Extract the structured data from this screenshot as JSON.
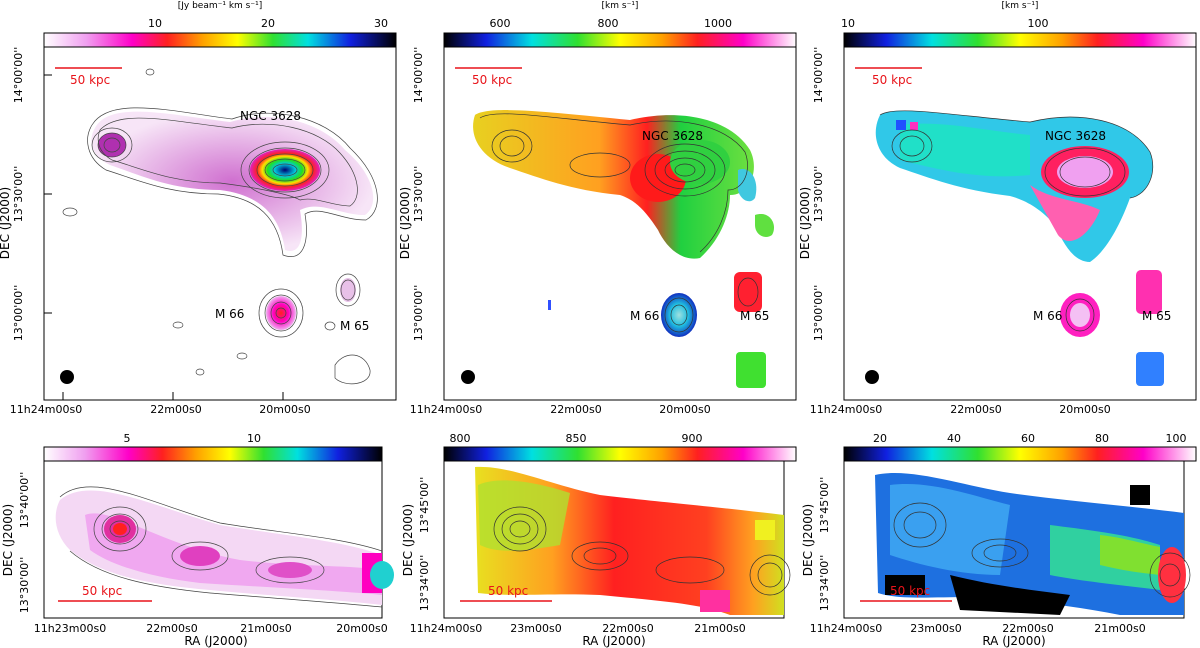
{
  "colorbars": {
    "cb1": {
      "unit": "[Jy beam⁻¹ km s⁻¹]",
      "ticks": [
        "10",
        "20",
        "30"
      ]
    },
    "cb2": {
      "unit": "[km s⁻¹]",
      "ticks": [
        "600",
        "800",
        "1000"
      ]
    },
    "cb3": {
      "unit": "[km s⁻¹]",
      "ticks": [
        "10",
        "100"
      ]
    },
    "cb4": {
      "unit": "",
      "ticks": [
        "5",
        "10"
      ]
    },
    "cb5": {
      "unit": "",
      "ticks": [
        "800",
        "850",
        "900"
      ]
    },
    "cb6": {
      "unit": "",
      "ticks": [
        "20",
        "40",
        "60",
        "80",
        "100"
      ]
    }
  },
  "axes": {
    "dec_label": "DEC (J2000)",
    "ra_label": "RA (J2000)",
    "top_dec_ticks": [
      "14°00'00''",
      "13°30'00''",
      "13°00'00''"
    ],
    "top_ra_ticks": [
      "11h24m00s0",
      "22m00s0",
      "20m00s0"
    ],
    "b1_dec_ticks": [
      "13°40'00''",
      "13°30'00''"
    ],
    "b2_dec_ticks": [
      "13°45'00''",
      "13°34'00''"
    ],
    "b1_ra_ticks": [
      "11h23m00s0",
      "22m00s0",
      "21m00s0",
      "20m00s0"
    ],
    "b2_ra_ticks": [
      "11h24m00s0",
      "23m00s0",
      "22m00s0",
      "21m00s0"
    ]
  },
  "labels": {
    "scale": "50 kpc",
    "ngc3628": "NGC 3628",
    "m66": "M 66",
    "m65": "M 65"
  },
  "colors": {
    "scale": "#e8141a",
    "contour": "#444444",
    "frame": "#000000"
  }
}
